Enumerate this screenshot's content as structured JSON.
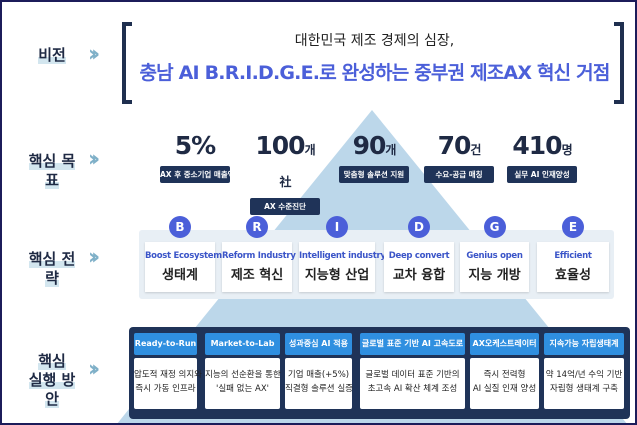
{
  "colors": {
    "navy": "#1f3358",
    "accent": "#4b5fd9",
    "triangle": "#bcd7ea",
    "header": "#2f8fe0"
  },
  "rows": {
    "vision": "비전",
    "goals": "핵심 목표",
    "strategy": "핵심 전략",
    "exec_line1": "핵심",
    "exec_line2": "실행 방안"
  },
  "chevron_icon": "double-chevron-right",
  "vision": {
    "subtitle": "대한민국 제조 경제의 심장,",
    "title": "충남 AI B.R.I.D.G.E.로 완성하는 중부권 제조AX 혁신 거점"
  },
  "goals": [
    {
      "value": "5%",
      "unit": "",
      "label": "AX 후 중소기업 매출액"
    },
    {
      "value": "100",
      "unit": "개 社",
      "label": "AX 수준진단"
    },
    {
      "value": "90",
      "unit": "개",
      "label": "맞춤형 솔루션 지원"
    },
    {
      "value": "70",
      "unit": "건",
      "label": "수요-공급 매칭"
    },
    {
      "value": "410",
      "unit": "명",
      "label": "실무 AI 인재양성"
    }
  ],
  "strategies": [
    {
      "letter": "B",
      "en": "Boost Ecosystem",
      "ko": "생태계"
    },
    {
      "letter": "R",
      "en": "Reform Industry",
      "ko": "제조 혁신"
    },
    {
      "letter": "I",
      "en": "Intelligent industry",
      "ko": "지능형 산업"
    },
    {
      "letter": "D",
      "en": "Deep convert",
      "ko": "교차 융합"
    },
    {
      "letter": "G",
      "en": "Genius open",
      "ko": "지능 개방"
    },
    {
      "letter": "E",
      "en": "Efficient",
      "ko": "효율성"
    }
  ],
  "actions": [
    {
      "title": "Ready-to-Run",
      "l1": "압도적 재정 의지와",
      "l2": "즉시 가동 인프라"
    },
    {
      "title": "Market-to-Lab",
      "l1": "지능의 선순환을 통한",
      "l2": "'실패 없는 AX'"
    },
    {
      "title": "성과중심 AI 적용",
      "l1": "기업 매출(+5%)",
      "l2": "직결형 솔루션 실증"
    },
    {
      "title": "글로벌 표준 기반 AI 고속도로",
      "l1": "글로벌 데이터 표준 기반의",
      "l2": "초고속 AI 확산 체계 조성"
    },
    {
      "title": "AX오케스트레이터",
      "l1": "즉시 전력형",
      "l2": "AI 실질 인재 양성"
    },
    {
      "title": "지속가능 자립생태계",
      "l1": "약 14억/년 수익 기반",
      "l2": "자립형 생태계 구축"
    }
  ]
}
